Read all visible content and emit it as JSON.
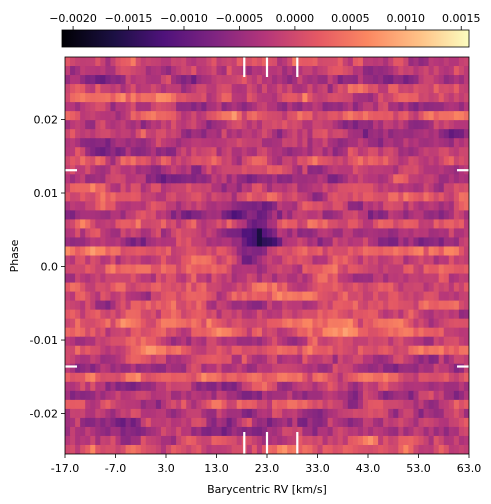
{
  "chart_data": {
    "type": "heatmap",
    "xlabel": "Barycentric RV [km/s]",
    "ylabel": "Phase",
    "xlim": [
      -17.0,
      63.0
    ],
    "ylim": [
      -0.0255,
      0.0285
    ],
    "x_ticks": [
      -17.0,
      -7.0,
      3.0,
      13.0,
      23.0,
      33.0,
      43.0,
      53.0,
      63.0
    ],
    "x_tick_labels": [
      "-17.0",
      "-7.0",
      "3.0",
      "13.0",
      "23.0",
      "33.0",
      "43.0",
      "53.0",
      "63.0"
    ],
    "y_ticks": [
      0.02,
      0.01,
      0.0,
      -0.01,
      -0.02
    ],
    "y_tick_labels": [
      "0.02",
      "0.01",
      "0.0",
      "-0.01",
      "-0.02"
    ],
    "colormap": "magma",
    "colorbar": {
      "location": "top",
      "range": [
        -0.0021,
        0.00157
      ],
      "ticks": [
        -0.002,
        -0.0015,
        -0.001,
        -0.0005,
        0.0,
        0.0005,
        0.001,
        0.0015
      ],
      "tick_labels": [
        "−0.0020",
        "−0.0015",
        "−0.0010",
        "−0.0005",
        "0.0000",
        "0.0005",
        "0.0010",
        "0.0015"
      ]
    },
    "grid": {
      "n_rows": 44,
      "n_cols": 80,
      "row_phase_step": 0.00122,
      "note_rows": "rows of cross-correlation residuals ordered in orbital phase"
    },
    "markers": {
      "vertical_rv": [
        18.5,
        23.0,
        29.0
      ],
      "horizontal_phase": [
        0.0131,
        -0.0136
      ]
    },
    "colors": {
      "low": "#000004",
      "mid_low": "#51127c",
      "mid": "#b73779",
      "mid_high": "#fc8961",
      "high": "#fcfdbf",
      "marker": "#ffffff"
    }
  }
}
